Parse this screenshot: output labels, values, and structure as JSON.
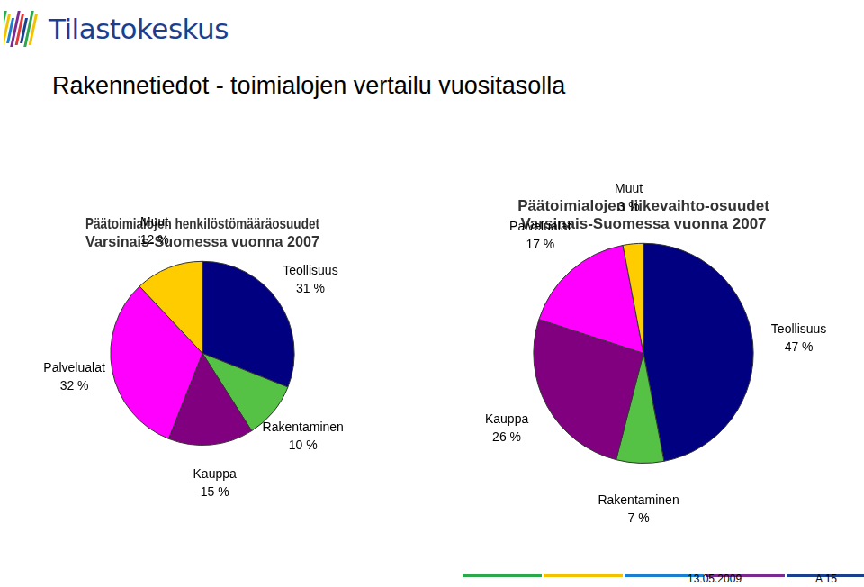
{
  "logo": "Tilastokeskus",
  "title": "Rakennetiedot - toimialojen vertailu vuositasolla",
  "footer": {
    "date": "13.05.2009",
    "page": "A 15"
  },
  "chart_data": [
    {
      "type": "pie",
      "title": [
        "Päätoimialojen henkilöstömääräosuudet",
        "Varsinais-Suomessa vuonna 2007"
      ],
      "categories": [
        "Teollisuus",
        "Rakentaminen",
        "Kauppa",
        "Palvelualat",
        "Muut"
      ],
      "values": [
        31,
        10,
        15,
        32,
        12
      ],
      "value_labels": [
        "31 %",
        "10 %",
        "15 %",
        "32 %",
        "12 %"
      ],
      "colors": [
        "#000080",
        "#55c145",
        "#800080",
        "#ff00ff",
        "#ffcc00"
      ],
      "data_labels": true
    },
    {
      "type": "pie",
      "title": [
        "Päätoimialojen liikevaihto-osuudet",
        "Varsinais-Suomessa vuonna 2007"
      ],
      "categories": [
        "Teollisuus",
        "Rakentaminen",
        "Kauppa",
        "Palvelualat",
        "Muut"
      ],
      "values": [
        47,
        7,
        26,
        17,
        3
      ],
      "value_labels": [
        "47 %",
        "7 %",
        "26 %",
        "17 %",
        "3 %"
      ],
      "colors": [
        "#000080",
        "#55c145",
        "#800080",
        "#ff00ff",
        "#ffcc00"
      ],
      "data_labels": true
    }
  ]
}
